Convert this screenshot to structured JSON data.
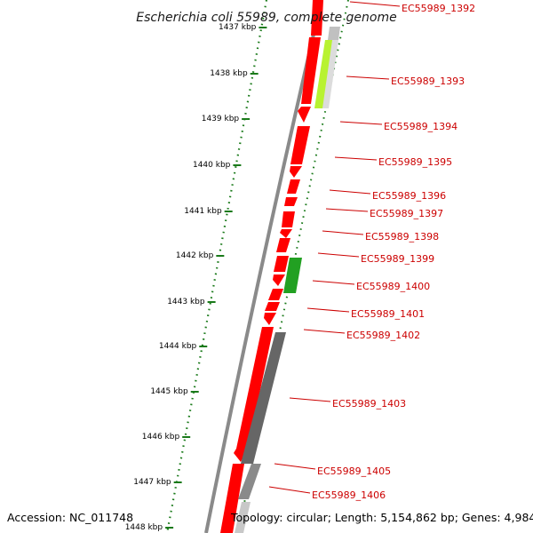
{
  "header": {
    "title": "Escherichia coli 55989, complete genome"
  },
  "footer": {
    "accession": "Accession: NC_011748",
    "topology": "Topology: circular; Length: 5,154,862 bp; Genes: 4,984"
  },
  "colors": {
    "forward_cds": "#ff0000",
    "reverse_gray": "#666666",
    "reverse_yellow": "#b8f231",
    "reverse_green": "#22a022",
    "backbone": "#808080",
    "tick": "#1a7a1a",
    "gene_label": "#cc0000"
  },
  "axis": {
    "ticks": [
      "1437 kbp",
      "1438 kbp",
      "1439 kbp",
      "1440 kbp",
      "1441 kbp",
      "1442 kbp",
      "1443 kbp",
      "1444 kbp",
      "1445 kbp",
      "1446 kbp",
      "1447 kbp",
      "1448 kbp"
    ]
  },
  "genes": [
    "EC55989_1392",
    "EC55989_1393",
    "EC55989_1394",
    "EC55989_1395",
    "EC55989_1396",
    "EC55989_1397",
    "EC55989_1398",
    "EC55989_1399",
    "EC55989_1400",
    "EC55989_1401",
    "EC55989_1402",
    "EC55989_1403",
    "EC55989_1405",
    "EC55989_1406"
  ]
}
